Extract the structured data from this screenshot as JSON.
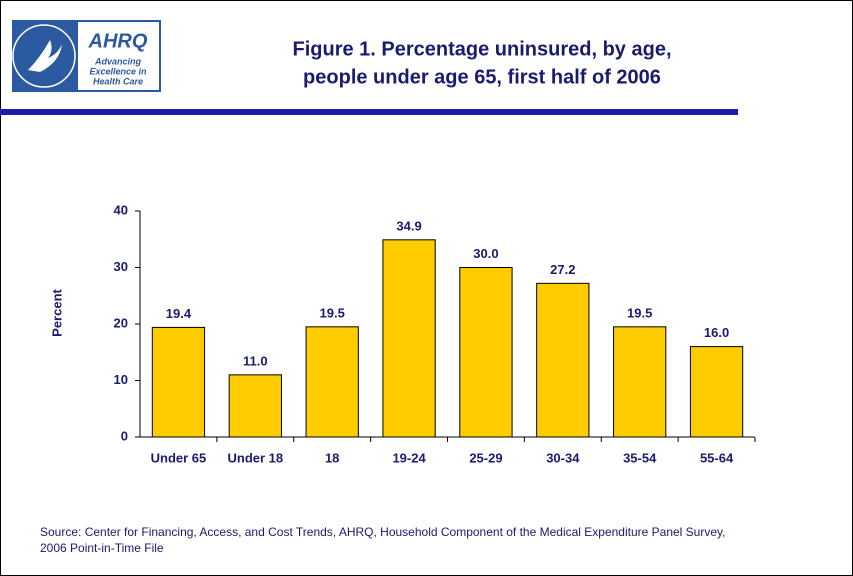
{
  "header": {
    "logo_name": "AHRQ",
    "logo_tagline_lines": [
      "Advancing",
      "Excellence in",
      "Health Care"
    ]
  },
  "chart_data": {
    "type": "bar",
    "title_lines": [
      "Figure 1. Percentage uninsured, by age,",
      "people under age 65, first half of 2006"
    ],
    "y_label": "Percent",
    "categories": [
      "Under 65",
      "Under 18",
      "18",
      "19-24",
      "25-29",
      "30-34",
      "35-54",
      "55-64"
    ],
    "values": [
      19.4,
      11.0,
      19.5,
      34.9,
      30.0,
      27.2,
      19.5,
      16.0
    ],
    "value_labels": [
      "19.4",
      "11.0",
      "19.5",
      "34.9",
      "30.0",
      "27.2",
      "19.5",
      "16.0"
    ],
    "color": "#ffcc00",
    "ylim": [
      0,
      40
    ],
    "yticks": [
      0,
      10,
      20,
      30,
      40
    ],
    "grid": false,
    "source_lines": [
      "Source: Center for Financing, Access, and Cost Trends, AHRQ, Household Component of the Medical Expenditure Panel Survey,",
      "2006 Point-in-Time File"
    ]
  }
}
